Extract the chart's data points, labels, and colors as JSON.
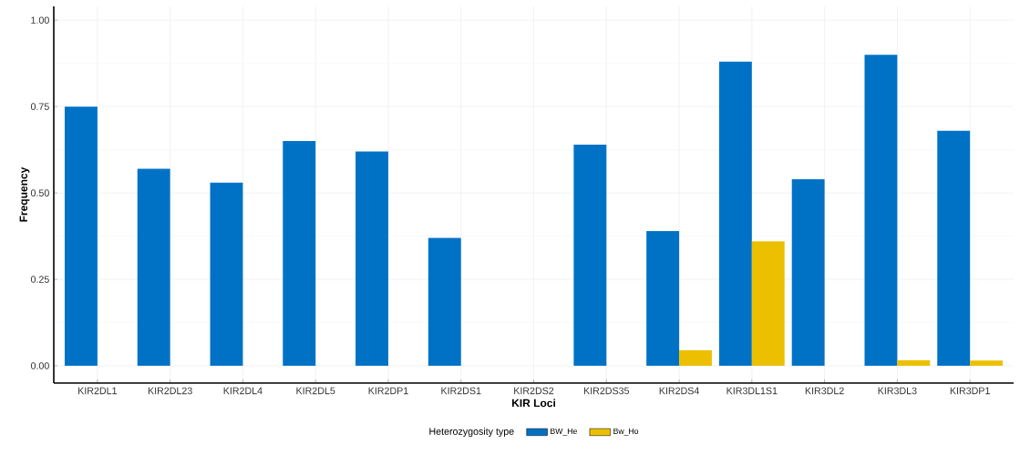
{
  "chart_data": {
    "type": "bar",
    "xlabel": "KIR Loci",
    "ylabel": "Frequency",
    "legend_title": "Heterozygosity type",
    "categories": [
      "KIR2DL1",
      "KIR2DL23",
      "KIR2DL4",
      "KIR2DL5",
      "KIR2DP1",
      "KIR2DS1",
      "KIR2DS2",
      "KIR2DS35",
      "KIR2DS4",
      "KIR3DL1S1",
      "KIR3DL2",
      "KIR3DL3",
      "KIR3DP1"
    ],
    "series": [
      {
        "name": "BW_He",
        "color": "#0072c6",
        "values": [
          0.75,
          0.57,
          0.53,
          0.65,
          0.62,
          0.37,
          null,
          0.64,
          0.39,
          0.88,
          0.54,
          0.9,
          0.68
        ]
      },
      {
        "name": "Bw_Ho",
        "color": "#ecc000",
        "values": [
          null,
          null,
          null,
          null,
          null,
          null,
          null,
          null,
          0.045,
          0.36,
          null,
          0.016,
          0.015
        ]
      }
    ],
    "ylim": [
      -0.05,
      1.04
    ],
    "yticks": [
      {
        "value": 0,
        "label": "0.00"
      },
      {
        "value": 0.25,
        "label": "0.25"
      },
      {
        "value": 0.5,
        "label": "0.50"
      },
      {
        "value": 0.75,
        "label": "0.75"
      },
      {
        "value": 1,
        "label": "1.00"
      }
    ],
    "grid": true,
    "legend": "bottom"
  }
}
